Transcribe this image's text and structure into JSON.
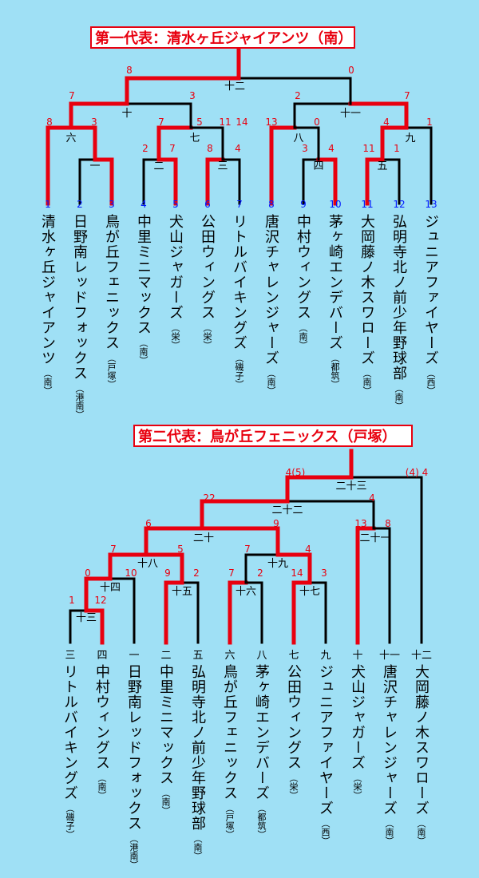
{
  "section1": {
    "title": "第一代表：清水ヶ丘ジャイアンツ（南）",
    "seeds": [
      "1",
      "2",
      "3",
      "4",
      "5",
      "6",
      "7",
      "8",
      "9",
      "10",
      "11",
      "12",
      "13"
    ],
    "teams": [
      {
        "name": "清水ヶ丘ジャイアンツ",
        "area": "（南）"
      },
      {
        "name": "日野南レッドフォックス",
        "area": "（港南）"
      },
      {
        "name": "鳥が丘フェニックス",
        "area": "（戸塚）"
      },
      {
        "name": "中里ミニマックス",
        "area": "（南）"
      },
      {
        "name": "犬山ジャガーズ",
        "area": "（栄）"
      },
      {
        "name": "公田ウィングス",
        "area": "（栄）"
      },
      {
        "name": "リトルバイキングズ",
        "area": "（磯子）"
      },
      {
        "name": "唐沢チャレンジャーズ",
        "area": "（南）"
      },
      {
        "name": "中村ウィングス",
        "area": "（南）"
      },
      {
        "name": "茅ヶ崎エンデバーズ",
        "area": "（都筑）"
      },
      {
        "name": "大岡藤ノ木スワローズ",
        "area": "（南）"
      },
      {
        "name": "弘明寺北ノ前少年野球部",
        "area": "（南）"
      },
      {
        "name": "ジュニアファイヤーズ",
        "area": "（西）"
      }
    ],
    "games": [
      "一",
      "二",
      "三",
      "四",
      "五",
      "六",
      "七",
      "八",
      "九",
      "十",
      "十一",
      "十二"
    ],
    "scores": [
      "8",
      "0",
      "7",
      "3",
      "2",
      "7",
      "4",
      "1",
      "8",
      "3",
      "7",
      "5",
      "13",
      "0",
      "11",
      "14",
      "2",
      "7",
      "8",
      "4",
      "3",
      "4",
      "11",
      "1"
    ]
  },
  "section2": {
    "title": "第二代表：鳥が丘フェニックス（戸塚）",
    "slots": [
      "三",
      "四",
      "一",
      "二",
      "五",
      "六",
      "八",
      "七",
      "九",
      "十",
      "十一",
      "十二"
    ],
    "teams": [
      {
        "name": "リトルバイキングズ",
        "area": "（磯子）"
      },
      {
        "name": "中村ウィングス",
        "area": "（南）"
      },
      {
        "name": "日野南レッドフォックス",
        "area": "（港南）"
      },
      {
        "name": "中里ミニマックス",
        "area": "（南）"
      },
      {
        "name": "弘明寺北ノ前少年野球部",
        "area": "（南）"
      },
      {
        "name": "鳥が丘フェニックス",
        "area": "（戸塚）"
      },
      {
        "name": "茅ヶ崎エンデバーズ",
        "area": "（都筑）"
      },
      {
        "name": "公田ウィングス",
        "area": "（栄）"
      },
      {
        "name": "ジュニアファイヤーズ",
        "area": "（西）"
      },
      {
        "name": "犬山ジャガーズ",
        "area": "（栄）"
      },
      {
        "name": "唐沢チャレンジャーズ",
        "area": "（南）"
      },
      {
        "name": "大岡藤ノ木スワローズ",
        "area": "（南）"
      }
    ],
    "games": [
      "十三",
      "十四",
      "十五",
      "十六",
      "十七",
      "十八",
      "十九",
      "二十",
      "二十一",
      "二十二",
      "二十三"
    ],
    "scores": [
      "4(5)",
      "(4) 4",
      "22",
      "4",
      "6",
      "9",
      "13",
      "8",
      "7",
      "5",
      "7",
      "4",
      "0",
      "10",
      "9",
      "2",
      "7",
      "2",
      "14",
      "3",
      "1",
      "12"
    ]
  },
  "colors": {
    "background": "#9fe0f5",
    "winner": "#e8000f",
    "line": "#000000",
    "seed": "#0018ff"
  }
}
